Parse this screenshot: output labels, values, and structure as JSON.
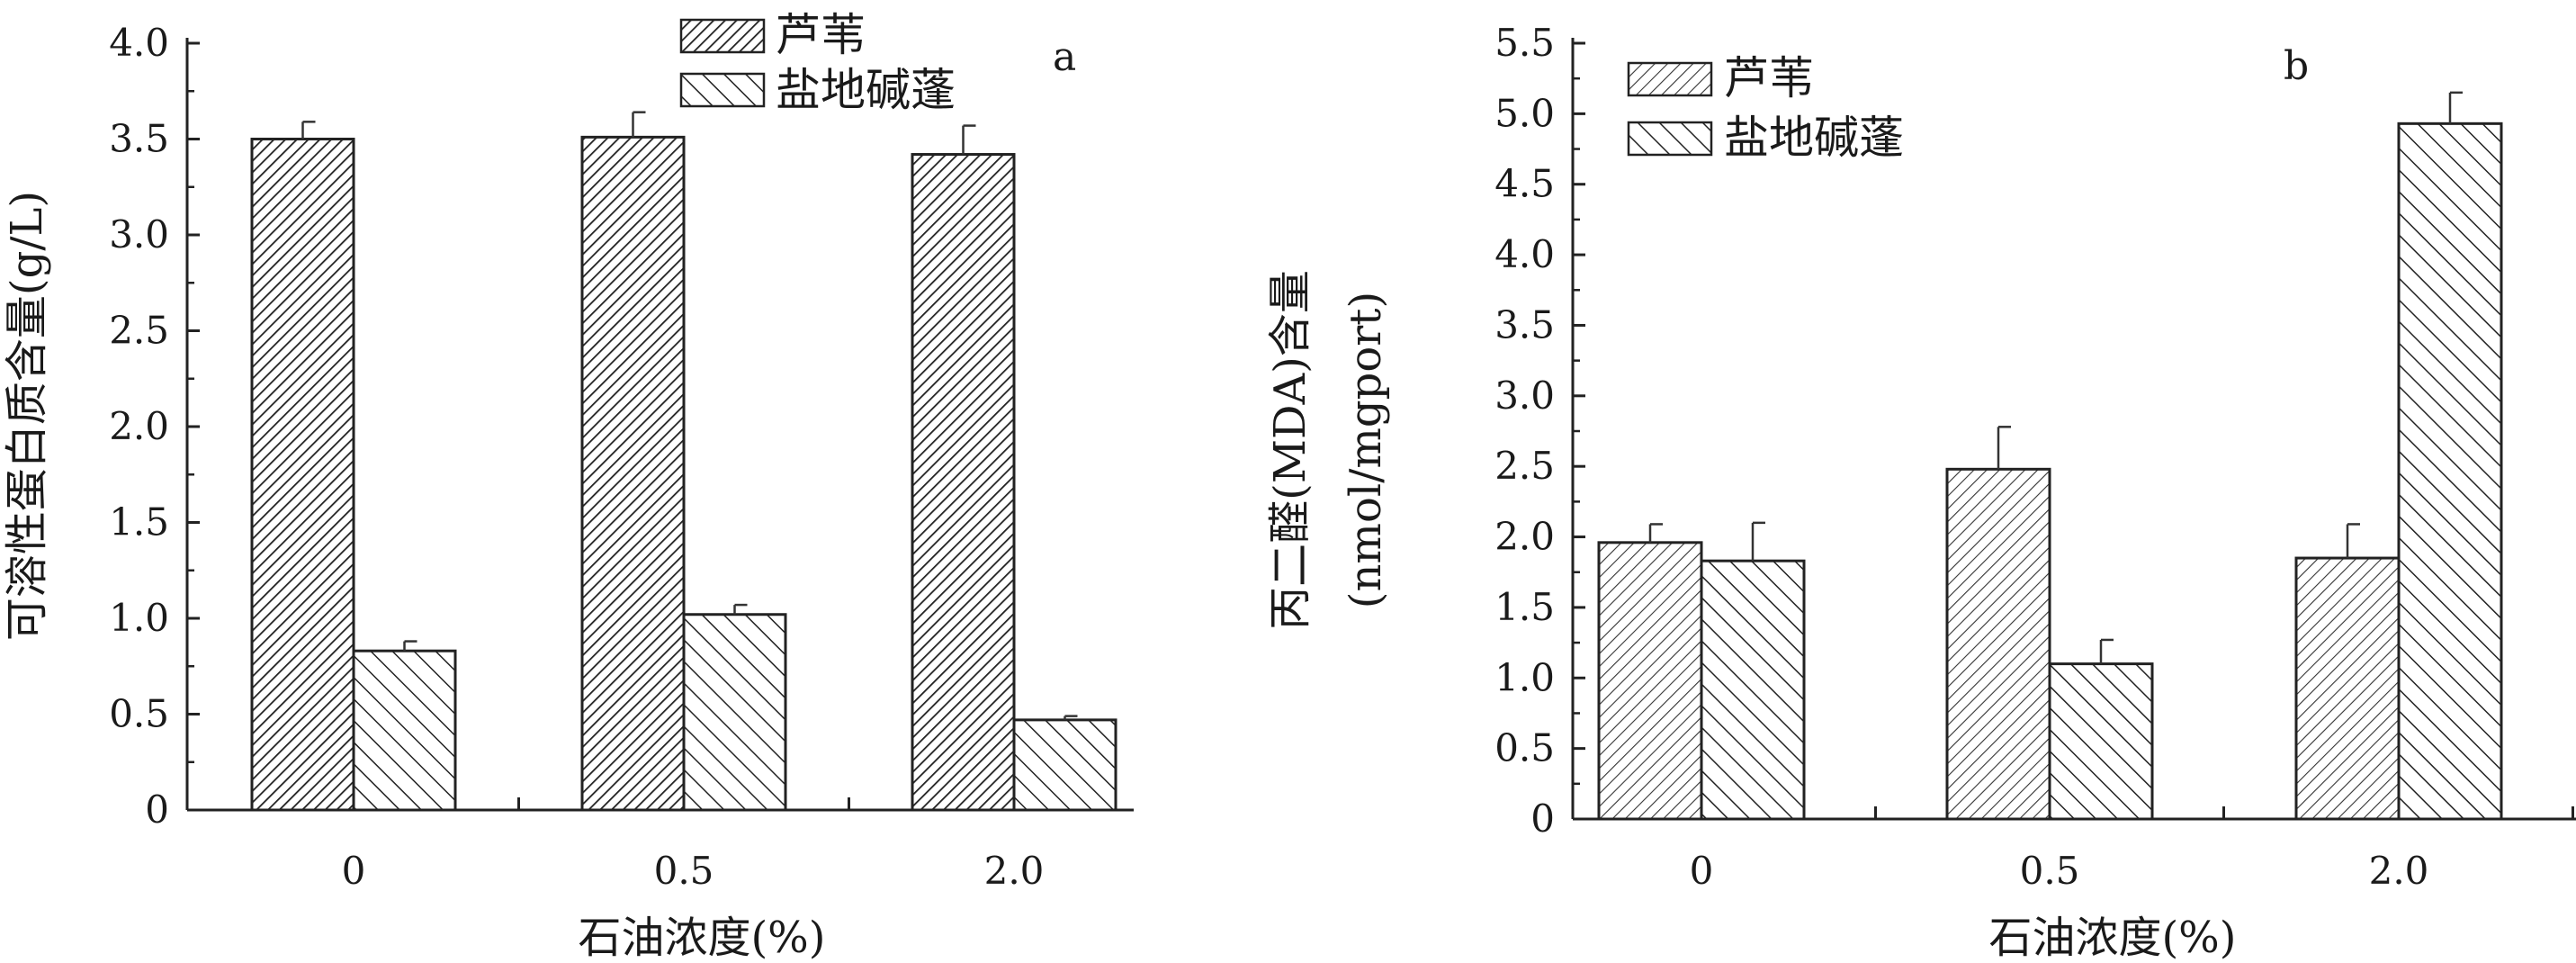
{
  "chart_data": [
    {
      "type": "bar",
      "panel_label": "a",
      "categories": [
        "0",
        "0.5",
        "2.0"
      ],
      "series": [
        {
          "name": "芦苇",
          "values": [
            3.5,
            3.51,
            3.42
          ],
          "errors": [
            0.09,
            0.13,
            0.15
          ],
          "pattern": "dense-diagonal"
        },
        {
          "name": "盐地碱蓬",
          "values": [
            0.83,
            1.02,
            0.47
          ],
          "errors": [
            0.05,
            0.05,
            0.02
          ],
          "pattern": "sparse-diagonal"
        }
      ],
      "xlabel": "石油浓度(%)",
      "ylabel": "可溶性蛋白质含量(g/L)",
      "ylim": [
        0,
        4.0
      ],
      "yticks": [
        "0",
        "0.5",
        "1.0",
        "1.5",
        "2.0",
        "2.5",
        "3.0",
        "3.5",
        "4.0"
      ],
      "legend_position": "top-center",
      "grid": false
    },
    {
      "type": "bar",
      "panel_label": "b",
      "categories": [
        "0",
        "0.5",
        "2.0"
      ],
      "series": [
        {
          "name": "芦苇",
          "values": [
            1.96,
            2.48,
            1.85
          ],
          "errors": [
            0.13,
            0.3,
            0.24
          ],
          "pattern": "light-diagonal"
        },
        {
          "name": "盐地碱蓬",
          "values": [
            1.83,
            1.1,
            4.93
          ],
          "errors": [
            0.27,
            0.17,
            0.22
          ],
          "pattern": "sparse-diagonal"
        }
      ],
      "xlabel": "石油浓度(%)",
      "ylabel_line1": "丙二醛(MDA)含量",
      "ylabel_line2": "(nmol/mgport)",
      "ylim": [
        0,
        5.5
      ],
      "yticks": [
        "0",
        "0.5",
        "1.0",
        "1.5",
        "2.0",
        "2.5",
        "3.0",
        "3.5",
        "4.0",
        "4.5",
        "5.0",
        "5.5"
      ],
      "legend_position": "top-left",
      "grid": false
    }
  ]
}
